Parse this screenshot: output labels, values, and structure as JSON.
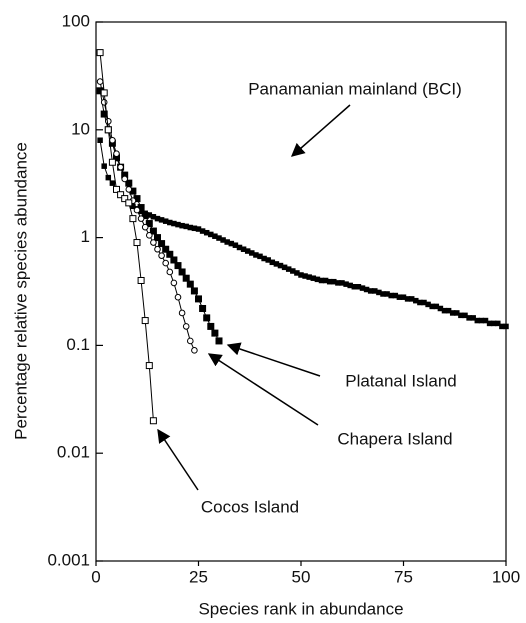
{
  "chart_data": {
    "type": "line",
    "xlabel": "Species rank in abundance",
    "ylabel": "Percentage relative species abundance",
    "xlim": [
      0,
      100
    ],
    "xticks": [
      0,
      25,
      50,
      75,
      100
    ],
    "ylim": [
      0.001,
      100
    ],
    "yticks": [
      0.001,
      0.01,
      0.1,
      1,
      10,
      100
    ],
    "yscale": "log",
    "series": [
      {
        "name": "Panamanian mainland (BCI)",
        "color": "#000000",
        "marker": "filled-square-small",
        "values": [
          8.0,
          4.6,
          3.6,
          3.2,
          2.8,
          2.5,
          2.3,
          2.1,
          1.95,
          1.85,
          1.75,
          1.68,
          1.62,
          1.56,
          1.5,
          1.46,
          1.42,
          1.38,
          1.35,
          1.32,
          1.29,
          1.27,
          1.24,
          1.22,
          1.2,
          1.15,
          1.11,
          1.07,
          1.03,
          0.99,
          0.95,
          0.91,
          0.88,
          0.85,
          0.81,
          0.78,
          0.75,
          0.72,
          0.69,
          0.67,
          0.64,
          0.62,
          0.59,
          0.57,
          0.55,
          0.53,
          0.51,
          0.49,
          0.47,
          0.45,
          0.44,
          0.43,
          0.42,
          0.41,
          0.4,
          0.4,
          0.39,
          0.39,
          0.38,
          0.38,
          0.37,
          0.36,
          0.35,
          0.35,
          0.34,
          0.33,
          0.32,
          0.32,
          0.31,
          0.3,
          0.3,
          0.29,
          0.29,
          0.28,
          0.28,
          0.27,
          0.27,
          0.26,
          0.25,
          0.25,
          0.24,
          0.23,
          0.23,
          0.22,
          0.21,
          0.21,
          0.2,
          0.2,
          0.19,
          0.19,
          0.18,
          0.18,
          0.17,
          0.17,
          0.17,
          0.16,
          0.16,
          0.16,
          0.15,
          0.15
        ]
      },
      {
        "name": "Platanal Island",
        "color": "#000000",
        "marker": "filled-square",
        "values": [
          23,
          14,
          10,
          7.5,
          5.5,
          4.5,
          3.8,
          3.2,
          2.7,
          2.3,
          1.9,
          1.6,
          1.35,
          1.15,
          1.0,
          0.88,
          0.78,
          0.7,
          0.62,
          0.55,
          0.48,
          0.42,
          0.37,
          0.32,
          0.27,
          0.22,
          0.18,
          0.15,
          0.13,
          0.11
        ]
      },
      {
        "name": "Chapera Island",
        "color": "#000000",
        "marker": "open-circle",
        "values": [
          28,
          18,
          12,
          8,
          6,
          4.5,
          3.5,
          2.8,
          2.2,
          1.8,
          1.5,
          1.25,
          1.05,
          0.9,
          0.78,
          0.68,
          0.58,
          0.48,
          0.38,
          0.28,
          0.2,
          0.15,
          0.11,
          0.09
        ]
      },
      {
        "name": "Cocos Island",
        "color": "#000000",
        "marker": "open-square",
        "values": [
          52,
          22,
          10,
          5,
          2.8,
          2.5,
          2.3,
          2.1,
          1.5,
          0.9,
          0.4,
          0.17,
          0.065,
          0.02
        ]
      }
    ]
  }
}
